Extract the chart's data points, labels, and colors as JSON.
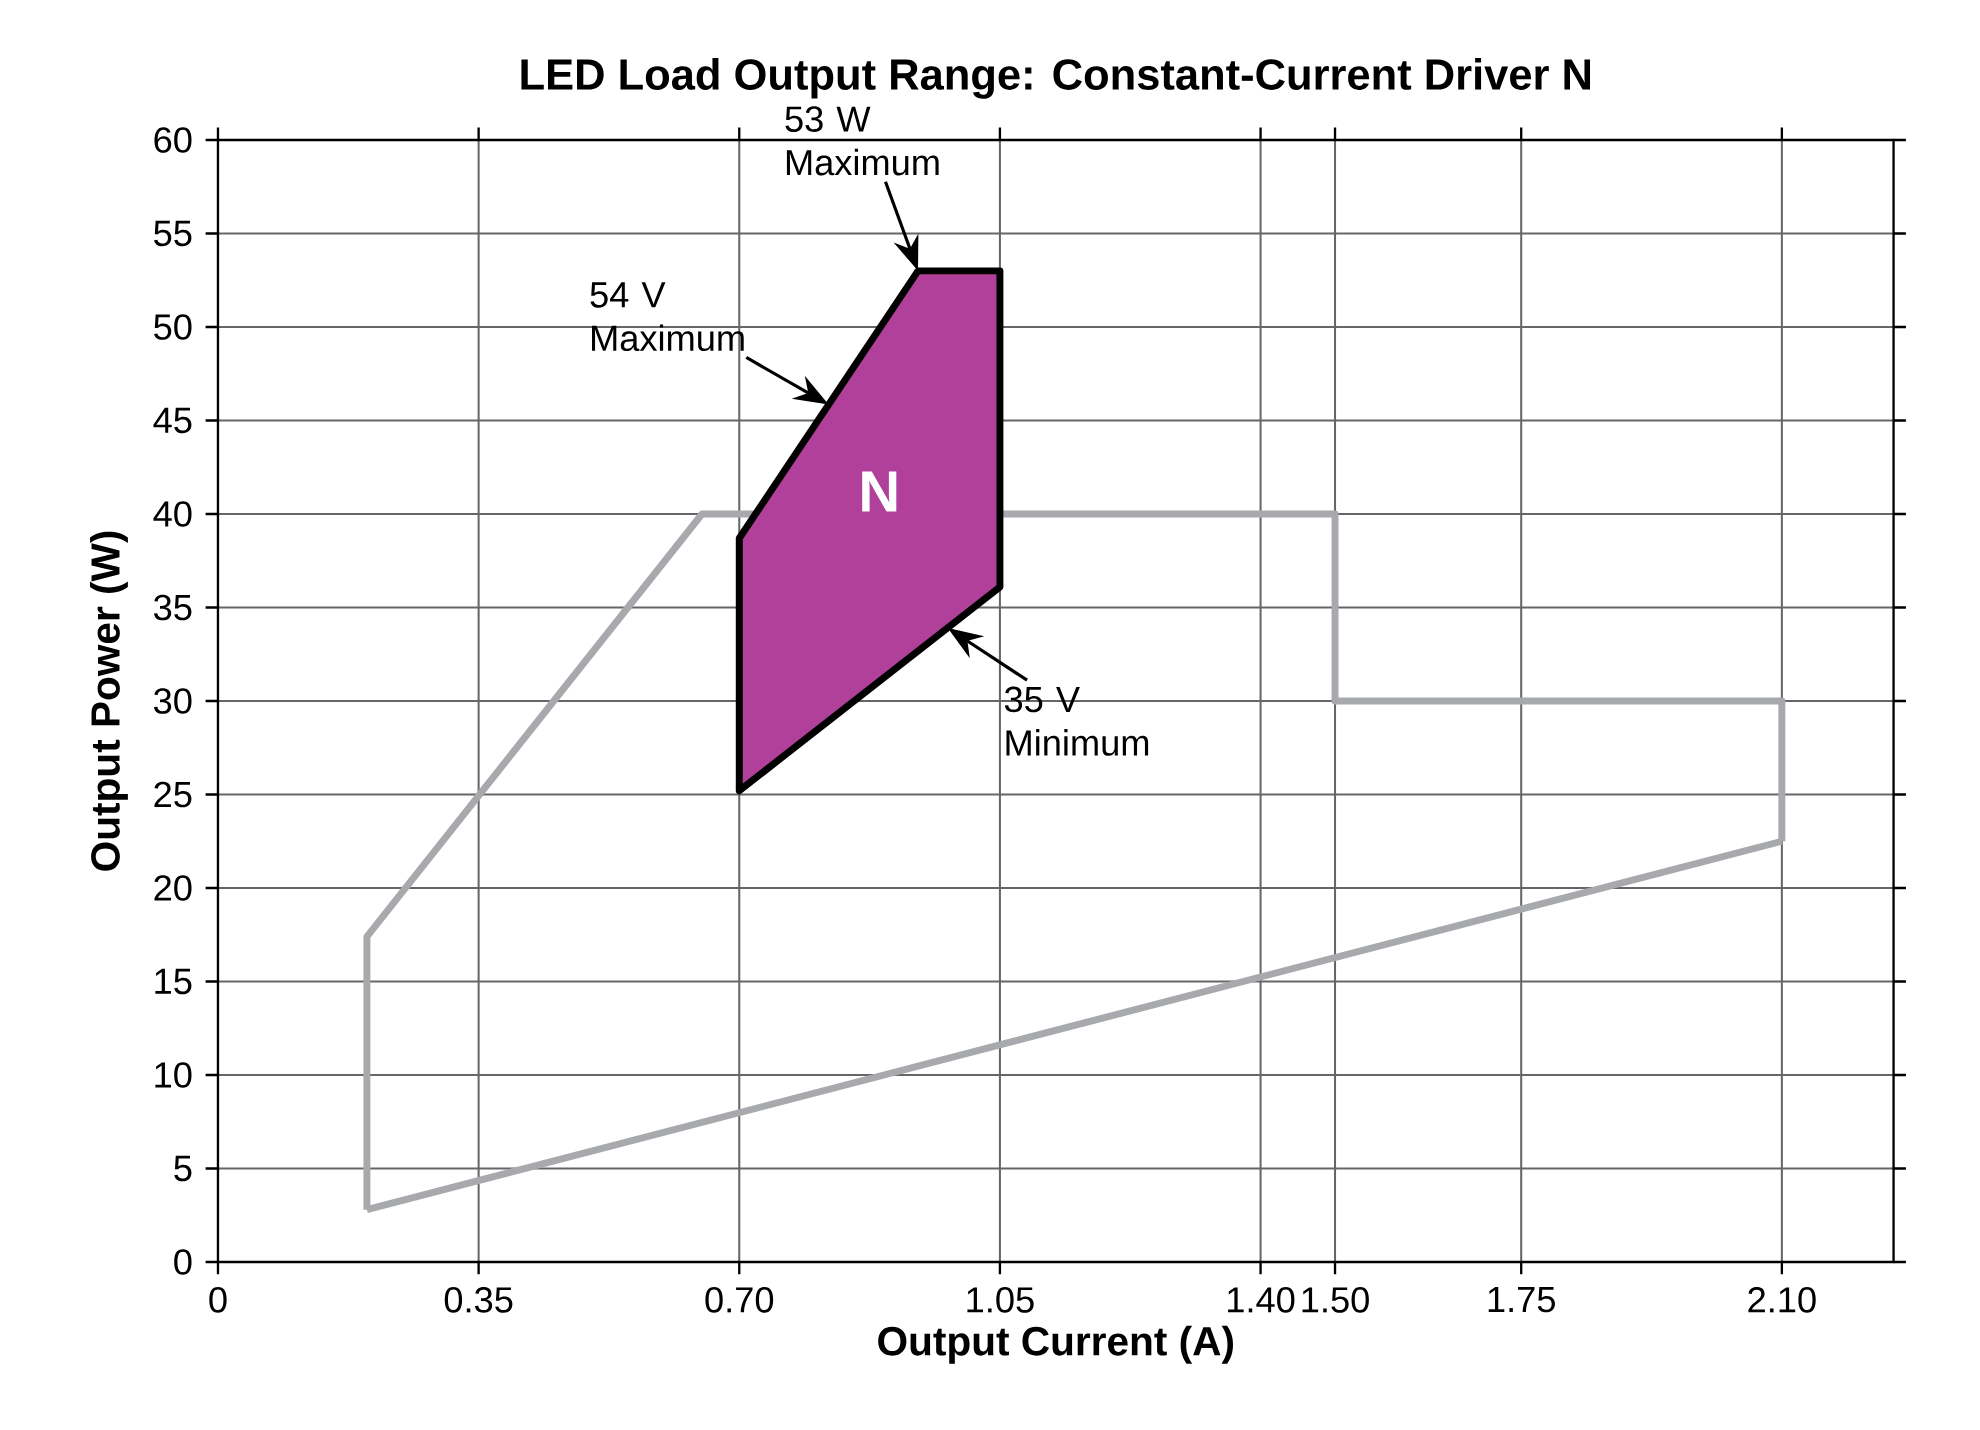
{
  "chart_data": {
    "type": "line",
    "title": "LED Load Output Range: Constant-Current Driver N",
    "xlabel": "Output Current (A)",
    "ylabel": "Output Power (W)",
    "series": [
      {
        "color": "#a7a9ac",
        "x": [
          0.2,
          0.2,
          0.65,
          1.5,
          1.5,
          2.1,
          2.1
        ],
        "values": [
          2.8,
          17.4,
          40,
          40,
          30,
          30,
          22.5
        ]
      },
      {
        "color": "#a7a9ac",
        "x": [
          0.2,
          2.1
        ],
        "values": [
          2.8,
          22.5
        ]
      },
      {
        "type": "area",
        "name": "N",
        "color": "#b0409a",
        "x": [
          0.7,
          0.7,
          0.94,
          1.05,
          1.05,
          0.7
        ],
        "values": [
          25.2,
          38.7,
          53,
          53,
          36.1,
          25.2
        ]
      }
    ],
    "annotations": [
      {
        "text": "53 W Maximum",
        "x": 0.94,
        "y": 53
      },
      {
        "text": "54 V Maximum",
        "x": 0.82,
        "y": 45.85
      },
      {
        "text": "35 V Minimum",
        "x": 0.98,
        "y": 33.9
      }
    ],
    "xlim": [
      0,
      2.25
    ],
    "ylim": [
      0,
      60
    ],
    "xticks": [
      0,
      0.35,
      {
        "value": 0.7,
        "label": "0.70"
      },
      1.05,
      {
        "value": 1.4,
        "label": "1.40"
      },
      {
        "value": 1.5,
        "label": "1.50"
      },
      1.75,
      {
        "value": 2.1,
        "label": "2.10"
      }
    ],
    "yticks": [
      0,
      5,
      10,
      15,
      20,
      25,
      30,
      35,
      40,
      45,
      50,
      55,
      60
    ],
    "grid": true
  }
}
